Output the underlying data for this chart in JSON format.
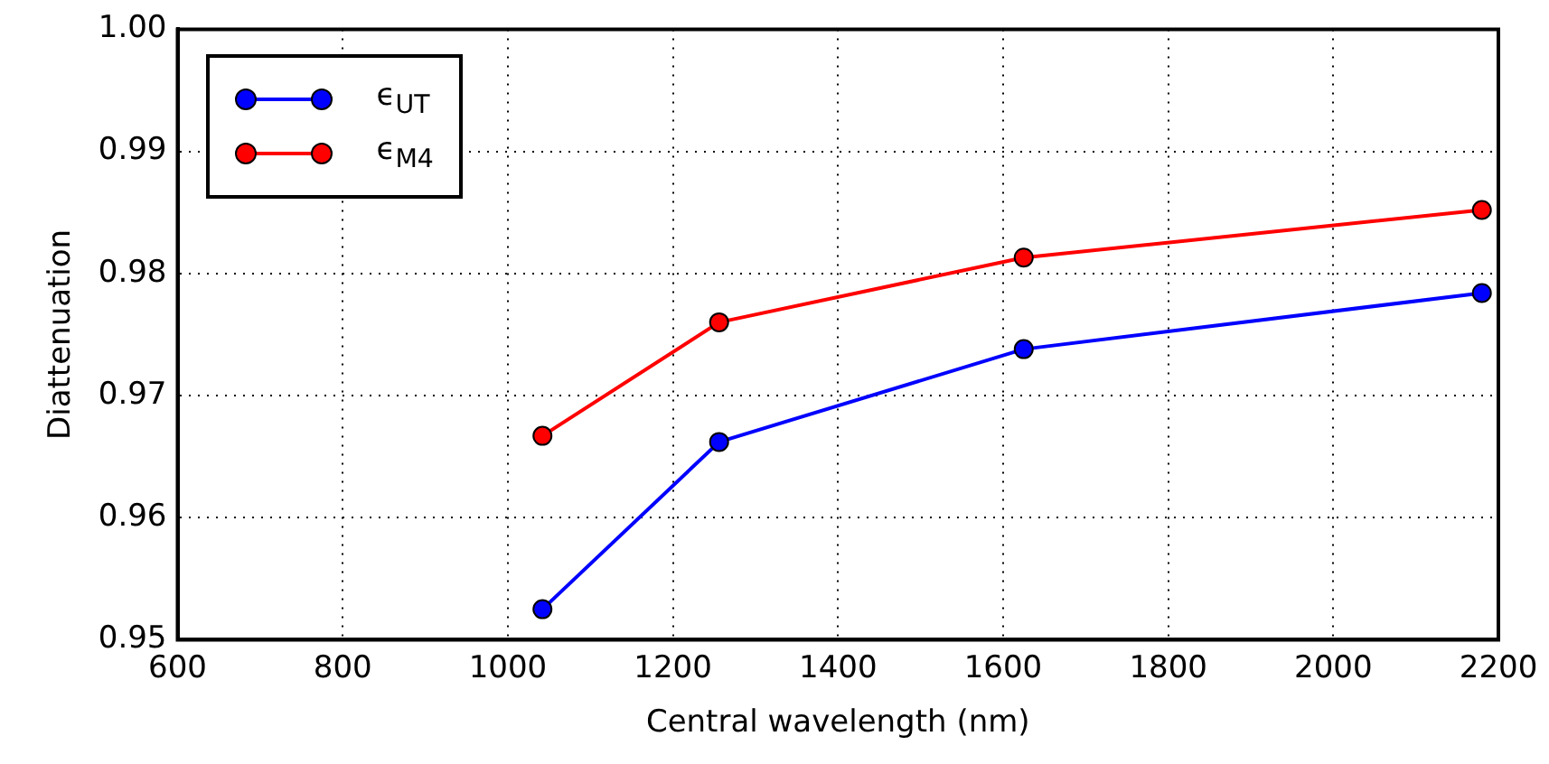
{
  "chart_data": {
    "type": "line",
    "xlabel": "Central wavelength (nm)",
    "ylabel": "Diattenuation",
    "xlim": [
      600,
      2200
    ],
    "xticks": [
      600,
      800,
      1000,
      1200,
      1400,
      1600,
      1800,
      2000,
      2200
    ],
    "ylim": [
      0.95,
      1.0
    ],
    "yticks": [
      {
        "value": 0.95,
        "label": "0.95"
      },
      {
        "value": 0.96,
        "label": "0.96"
      },
      {
        "value": 0.97,
        "label": "0.97"
      },
      {
        "value": 0.98,
        "label": "0.98"
      },
      {
        "value": 0.99,
        "label": "0.99"
      },
      {
        "value": 1.0,
        "label": "1.00"
      }
    ],
    "grid": true,
    "legend": "top left",
    "marker": "circle",
    "line_style": "solid",
    "series": [
      {
        "name": "ϵ$_{UT}$",
        "color": "#0000ff",
        "x": [
          1042,
          1256,
          1625,
          2180
        ],
        "values": [
          0.9525,
          0.9662,
          0.9738,
          0.9784
        ]
      },
      {
        "name": "ϵ$_{M4}$",
        "color": "#ff0000",
        "x": [
          1042,
          1256,
          1625,
          2180
        ],
        "values": [
          0.9667,
          0.976,
          0.9813,
          0.9852
        ]
      }
    ]
  }
}
